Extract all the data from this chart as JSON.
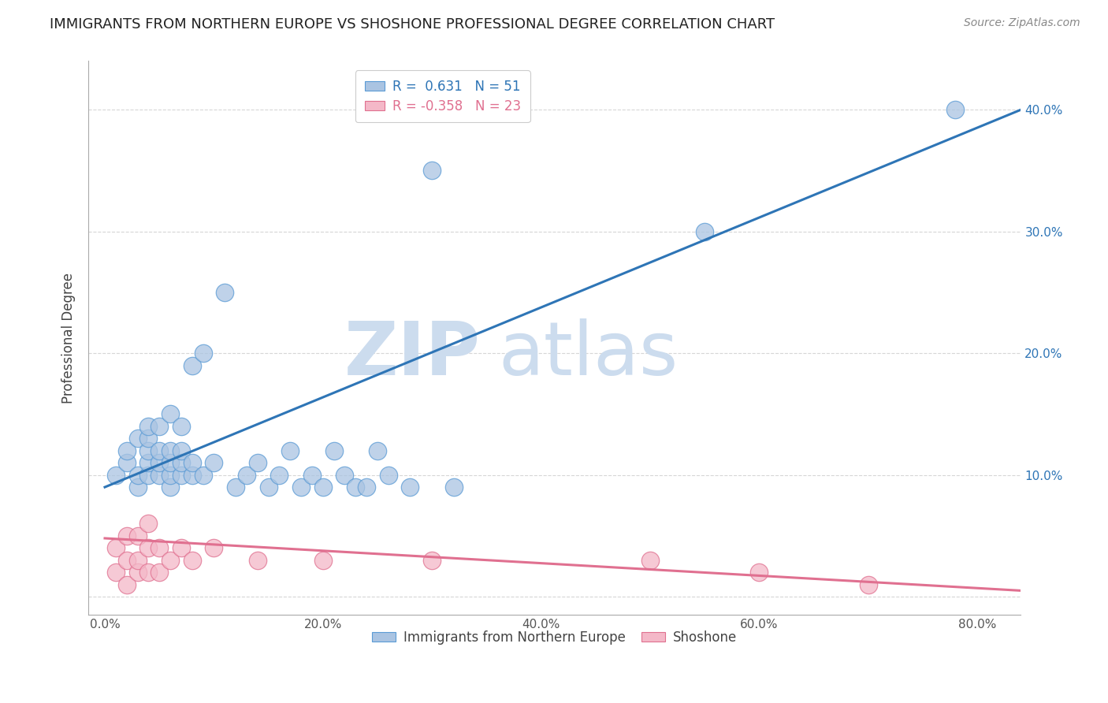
{
  "title": "IMMIGRANTS FROM NORTHERN EUROPE VS SHOSHONE PROFESSIONAL DEGREE CORRELATION CHART",
  "source_text": "Source: ZipAtlas.com",
  "ylabel": "Professional Degree",
  "x_ticks": [
    0.0,
    0.1,
    0.2,
    0.3,
    0.4,
    0.5,
    0.6,
    0.7,
    0.8
  ],
  "x_tick_labels": [
    "0.0%",
    "",
    "20.0%",
    "",
    "40.0%",
    "",
    "60.0%",
    "",
    "80.0%"
  ],
  "y_ticks": [
    0.0,
    0.1,
    0.2,
    0.3,
    0.4
  ],
  "y_tick_labels_right": [
    "",
    "10.0%",
    "20.0%",
    "30.0%",
    "40.0%"
  ],
  "xlim": [
    -0.015,
    0.84
  ],
  "ylim": [
    -0.015,
    0.44
  ],
  "blue_R": 0.631,
  "blue_N": 51,
  "pink_R": -0.358,
  "pink_N": 23,
  "blue_color": "#aac4e2",
  "blue_edge_color": "#5b9bd5",
  "blue_line_color": "#2e75b6",
  "pink_color": "#f4b8c8",
  "pink_edge_color": "#e07090",
  "pink_line_color": "#e07090",
  "watermark_zip": "ZIP",
  "watermark_atlas": "atlas",
  "watermark_color": "#ccdcee",
  "background_color": "#ffffff",
  "grid_color": "#cccccc",
  "title_color": "#222222",
  "legend_edge_color": "#cccccc",
  "blue_scatter_x": [
    0.01,
    0.02,
    0.02,
    0.03,
    0.03,
    0.03,
    0.04,
    0.04,
    0.04,
    0.04,
    0.04,
    0.05,
    0.05,
    0.05,
    0.05,
    0.06,
    0.06,
    0.06,
    0.06,
    0.06,
    0.07,
    0.07,
    0.07,
    0.07,
    0.08,
    0.08,
    0.08,
    0.09,
    0.09,
    0.1,
    0.11,
    0.12,
    0.13,
    0.14,
    0.15,
    0.16,
    0.17,
    0.18,
    0.19,
    0.2,
    0.21,
    0.22,
    0.23,
    0.24,
    0.25,
    0.26,
    0.28,
    0.3,
    0.32,
    0.55,
    0.78
  ],
  "blue_scatter_y": [
    0.1,
    0.11,
    0.12,
    0.09,
    0.1,
    0.13,
    0.1,
    0.11,
    0.12,
    0.13,
    0.14,
    0.1,
    0.11,
    0.12,
    0.14,
    0.09,
    0.1,
    0.11,
    0.12,
    0.15,
    0.1,
    0.11,
    0.12,
    0.14,
    0.1,
    0.11,
    0.19,
    0.1,
    0.2,
    0.11,
    0.25,
    0.09,
    0.1,
    0.11,
    0.09,
    0.1,
    0.12,
    0.09,
    0.1,
    0.09,
    0.12,
    0.1,
    0.09,
    0.09,
    0.12,
    0.1,
    0.09,
    0.35,
    0.09,
    0.3,
    0.4
  ],
  "pink_scatter_x": [
    0.01,
    0.01,
    0.02,
    0.02,
    0.02,
    0.03,
    0.03,
    0.03,
    0.04,
    0.04,
    0.04,
    0.05,
    0.05,
    0.06,
    0.07,
    0.08,
    0.1,
    0.14,
    0.2,
    0.3,
    0.5,
    0.6,
    0.7
  ],
  "pink_scatter_y": [
    0.02,
    0.04,
    0.01,
    0.03,
    0.05,
    0.02,
    0.03,
    0.05,
    0.02,
    0.04,
    0.06,
    0.02,
    0.04,
    0.03,
    0.04,
    0.03,
    0.04,
    0.03,
    0.03,
    0.03,
    0.03,
    0.02,
    0.01
  ],
  "blue_line_x0": 0.0,
  "blue_line_x1": 0.84,
  "blue_line_y0": 0.09,
  "blue_line_y1": 0.4,
  "pink_line_x0": 0.0,
  "pink_line_x1": 0.84,
  "pink_line_y0": 0.048,
  "pink_line_y1": 0.005
}
